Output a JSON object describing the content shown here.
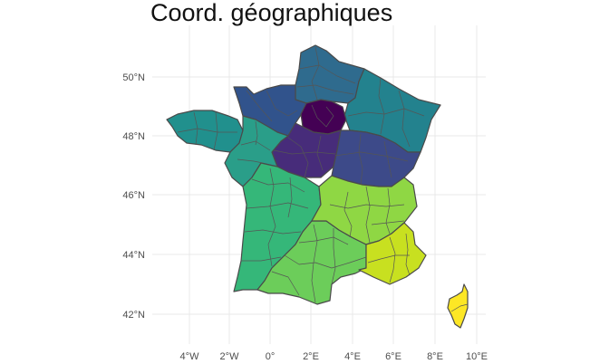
{
  "map": {
    "title": "Coord. géographiques",
    "x_ticks": [
      "4°W",
      "2°W",
      "0°",
      "2°E",
      "4°E",
      "6°E",
      "8°E",
      "10°E"
    ],
    "y_ticks": [
      "42°N",
      "44°N",
      "46°N",
      "48°N",
      "50°N"
    ],
    "regions": [
      {
        "name": "Hauts-de-France",
        "color": "#2f6b8e"
      },
      {
        "name": "Normandie",
        "color": "#31538c"
      },
      {
        "name": "Grand Est",
        "color": "#23828e"
      },
      {
        "name": "Île-de-France",
        "color": "#440154"
      },
      {
        "name": "Centre-Val de Loire",
        "color": "#472c7a"
      },
      {
        "name": "Bourgogne-Franche-Comté",
        "color": "#3d4a89"
      },
      {
        "name": "Bretagne",
        "color": "#21908d"
      },
      {
        "name": "Pays de la Loire",
        "color": "#2a9e89"
      },
      {
        "name": "Nouvelle-Aquitaine",
        "color": "#35b779"
      },
      {
        "name": "Occitanie",
        "color": "#6ccd5a"
      },
      {
        "name": "Auvergne-Rhône-Alpes",
        "color": "#8fd744"
      },
      {
        "name": "Provence-Alpes-Côte d'Azur",
        "color": "#c8e020"
      },
      {
        "name": "Corse",
        "color": "#fde725"
      }
    ]
  }
}
